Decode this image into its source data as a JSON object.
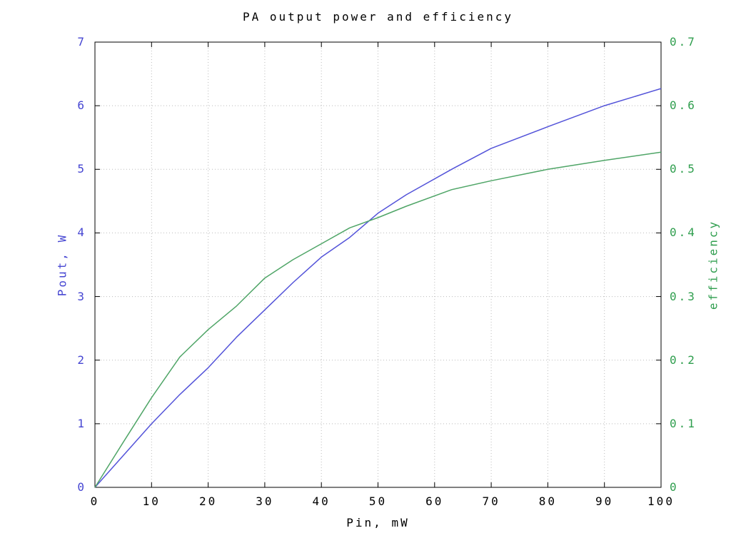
{
  "title": "PA output power and efficiency",
  "chart_data": {
    "type": "line",
    "title": "PA output power and efficiency",
    "xlabel": "Pin, mW",
    "ylabel_left": "Pout, W",
    "ylabel_right": "efficiency",
    "x_range": [
      0,
      100
    ],
    "y_left_range": [
      0,
      7
    ],
    "y_right_range": [
      0,
      0.7
    ],
    "grid": true,
    "legend": "none",
    "x_tick_labels": [
      "0",
      "10",
      "20",
      "30",
      "40",
      "50",
      "60",
      "70",
      "80",
      "90",
      "100"
    ],
    "x_tick_values": [
      0,
      10,
      20,
      30,
      40,
      50,
      60,
      70,
      80,
      90,
      100
    ],
    "y_left_tick_labels": [
      "0",
      "1",
      "2",
      "3",
      "4",
      "5",
      "6",
      "7"
    ],
    "y_left_tick_values": [
      0,
      1,
      2,
      3,
      4,
      5,
      6,
      7
    ],
    "y_right_tick_labels": [
      "0",
      "0.1",
      "0.2",
      "0.3",
      "0.4",
      "0.5",
      "0.6",
      "0.7"
    ],
    "y_right_tick_values": [
      0,
      0.1,
      0.2,
      0.3,
      0.4,
      0.5,
      0.6,
      0.7
    ],
    "series": [
      {
        "name": "Pout",
        "axis": "left",
        "line_color": "#5353d9",
        "label_color": "#4646d2",
        "x": [
          0,
          5,
          10,
          15,
          20,
          25,
          30,
          35,
          40,
          45,
          50,
          55,
          63,
          70,
          80,
          90,
          100
        ],
        "y": [
          0,
          0.5,
          1.0,
          1.46,
          1.88,
          2.36,
          2.79,
          3.22,
          3.62,
          3.93,
          4.31,
          4.6,
          5.0,
          5.33,
          5.67,
          6.0,
          6.27
        ]
      },
      {
        "name": "efficiency",
        "axis": "right",
        "line_color": "#4fa567",
        "label_color": "#2f9e4e",
        "x": [
          0,
          5,
          10,
          15,
          20,
          25,
          30,
          35,
          40,
          45,
          50,
          55,
          63,
          70,
          80,
          90,
          100
        ],
        "y": [
          0,
          0.071,
          0.141,
          0.205,
          0.248,
          0.285,
          0.329,
          0.358,
          0.383,
          0.408,
          0.424,
          0.442,
          0.468,
          0.482,
          0.5,
          0.514,
          0.527
        ]
      }
    ],
    "colors": {
      "background": "#ffffff",
      "border": "#000000",
      "grid": "#bbbbbb",
      "tick": "#000000",
      "text": "#000000"
    }
  }
}
